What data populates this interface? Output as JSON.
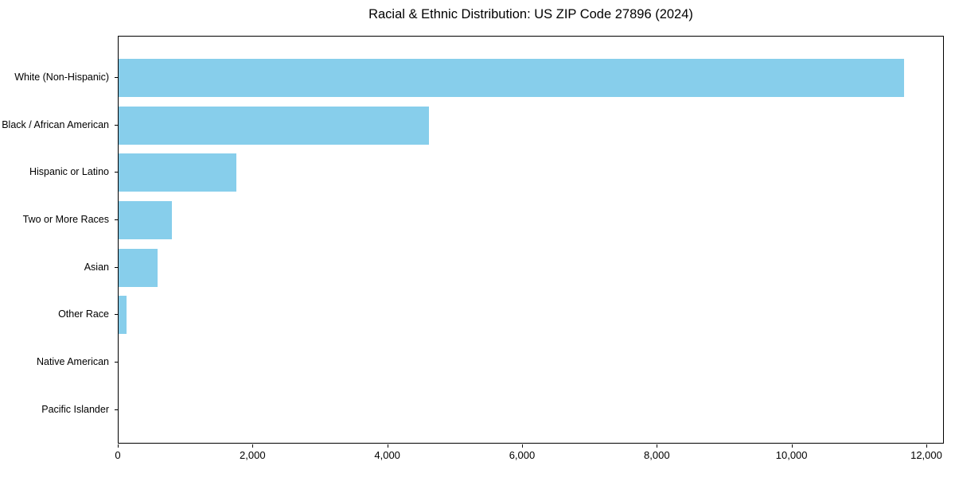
{
  "title": "Racial & Ethnic Distribution: US ZIP Code 27896 (2024)",
  "chart_data": {
    "type": "bar",
    "orientation": "horizontal",
    "title": "Racial & Ethnic Distribution: US ZIP Code 27896 (2024)",
    "xlabel": "",
    "ylabel": "",
    "categories": [
      "White (Non-Hispanic)",
      "Black / African American",
      "Hispanic or Latino",
      "Two or More Races",
      "Asian",
      "Other Race",
      "Native American",
      "Pacific Islander"
    ],
    "values": [
      11680,
      4620,
      1750,
      790,
      575,
      115,
      0,
      0
    ],
    "xlim": [
      0,
      12260
    ],
    "xticks": [
      0,
      2000,
      4000,
      6000,
      8000,
      10000,
      12000
    ],
    "xtick_labels": [
      "0",
      "2,000",
      "4,000",
      "6,000",
      "8,000",
      "10,000",
      "12,000"
    ],
    "bar_color": "#87CEEB",
    "axis_color": "#000000",
    "grid": false,
    "legend": null
  }
}
